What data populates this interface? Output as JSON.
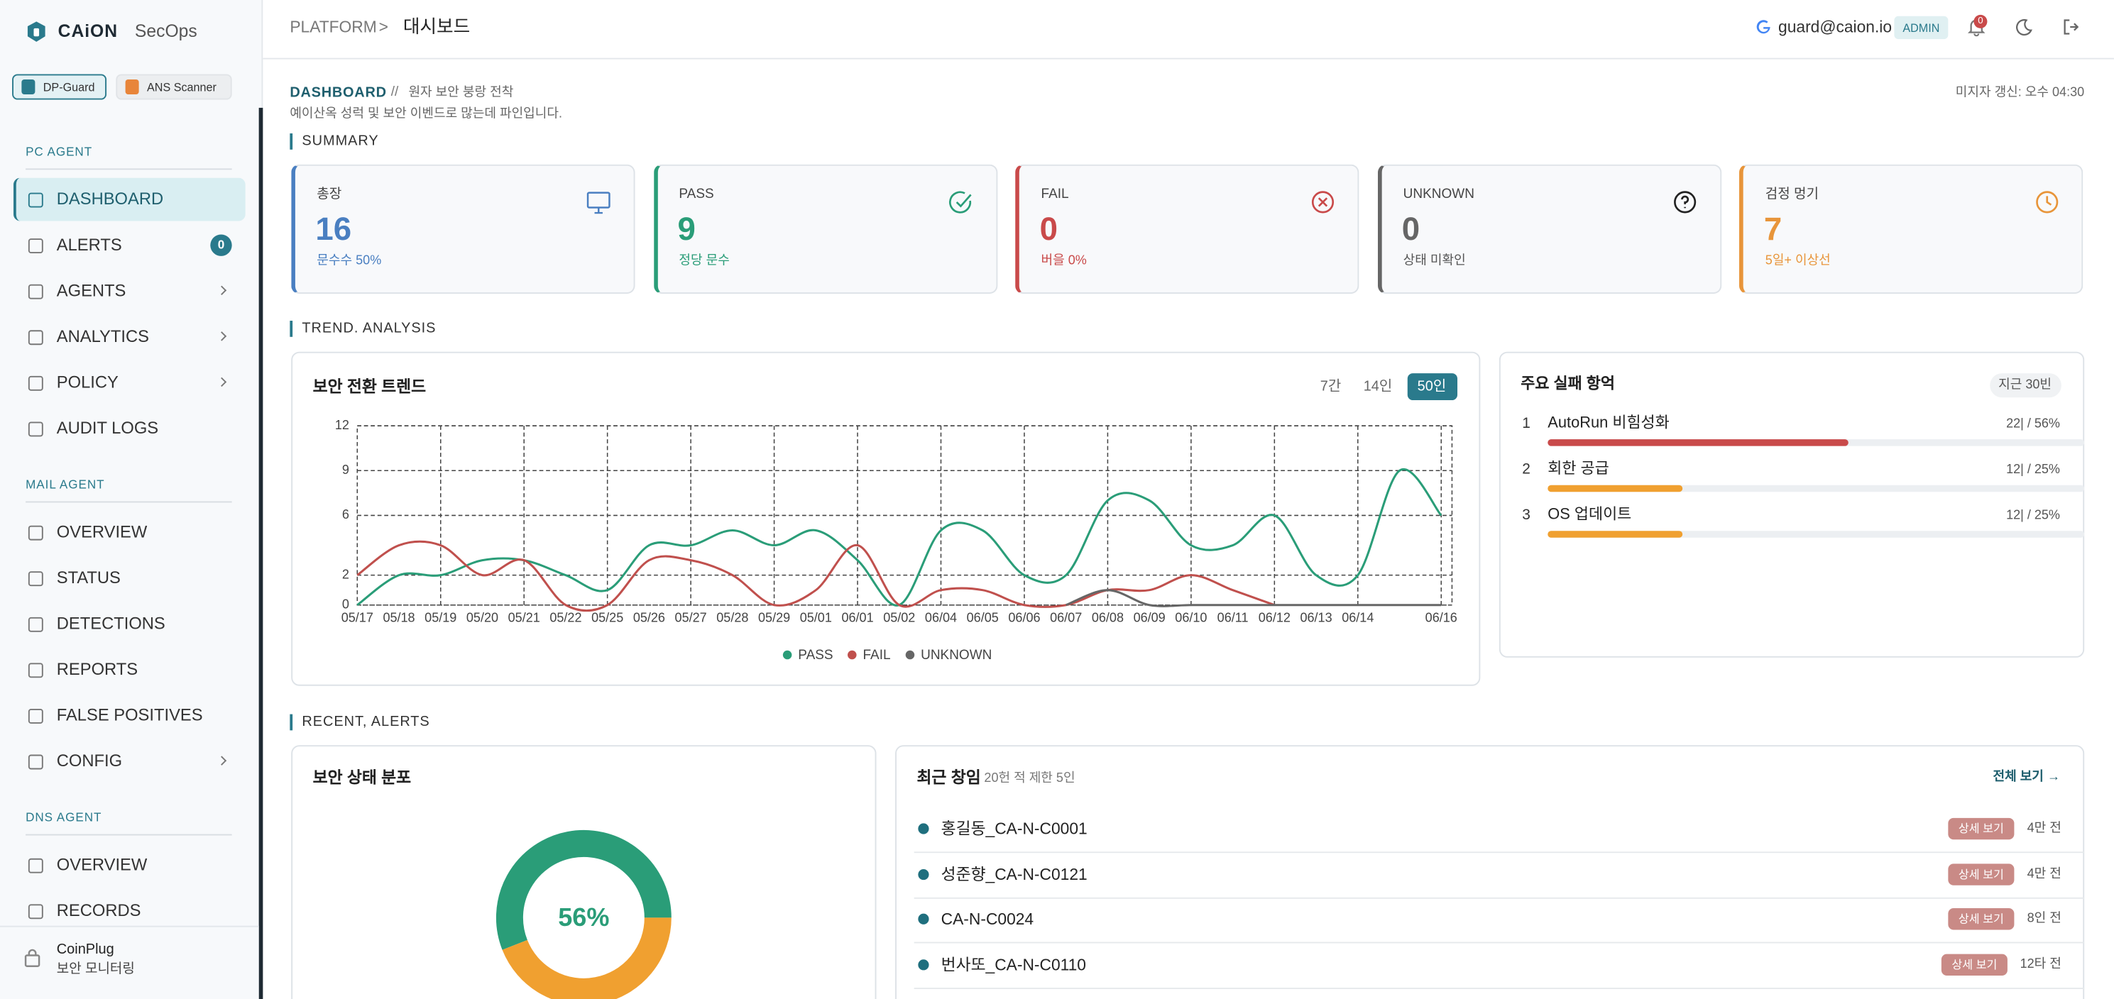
{
  "sidebar": {
    "brand": "CAiON",
    "product": "SecOps",
    "tabs": [
      "DP-Guard",
      "ANS Scanner"
    ],
    "active_tab": 0,
    "sections": [
      {
        "title": "PC AGENT",
        "items": [
          {
            "label": "DASHBOARD",
            "active": true
          },
          {
            "label": "ALERTS",
            "badge": 0
          },
          {
            "label": "AGENTS",
            "expandable": true
          },
          {
            "label": "ANALYTICS",
            "expandable": true
          },
          {
            "label": "POLICY",
            "expandable": true
          },
          {
            "label": "AUDIT LOGS"
          }
        ]
      },
      {
        "title": "MAIL AGENT",
        "items": [
          {
            "label": "OVERVIEW"
          },
          {
            "label": "STATUS"
          },
          {
            "label": "DETECTIONS"
          },
          {
            "label": "REPORTS"
          },
          {
            "label": "FALSE POSITIVES"
          },
          {
            "label": "CONFIG",
            "expandable": true
          }
        ]
      },
      {
        "title": "DNS AGENT",
        "items": [
          {
            "label": "OVERVIEW"
          },
          {
            "label": "RECORDS"
          }
        ]
      }
    ],
    "footer": {
      "org": "CoinPlug",
      "caption": "보안 모니터링"
    }
  },
  "header": {
    "breadcrumb": [
      "PLATFORM",
      "대시보드"
    ],
    "breadcrumb_separator": ">",
    "user": "guard@caion.io",
    "role": "ADMIN",
    "notifications": 0
  },
  "page": {
    "title": "DASHBOARD",
    "separator": "//",
    "subtitle": "원자 보안 붕랑 전착",
    "description": "예이산옥 성럭 및 보안 이벤드로 많는데 파인입니다.",
    "updated": "미지자 갱신: 오수 04:30"
  },
  "summary": {
    "heading": "SUMMARY",
    "cards": [
      {
        "label": "총장",
        "value": 16,
        "note": "문수수 50%",
        "color": "#4a7fc1"
      },
      {
        "label": "PASS",
        "value": 9,
        "note": "정당 문수",
        "color": "#2a9d78"
      },
      {
        "label": "FAIL",
        "value": 0,
        "note": "버을 0%",
        "color": "#c94a4a"
      },
      {
        "label": "UNKNOWN",
        "value": 0,
        "note": "상태 미확인",
        "color": "#666666"
      },
      {
        "label": "검정 멍기",
        "value": 7,
        "note": "5일+ 이상선",
        "color": "#e8953a"
      }
    ]
  },
  "trend": {
    "heading": "TREND. ANALYSIS",
    "ranges": [
      "7간",
      "14인",
      "50인"
    ],
    "active_range": 2
  },
  "chart_data": [
    {
      "type": "line",
      "title": "보안 전환 트렌드",
      "categories": [
        "05/17",
        "05/18",
        "05/19",
        "05/20",
        "05/21",
        "05/22",
        "05/25",
        "05/26",
        "05/27",
        "05/28",
        "05/29",
        "05/01",
        "06/01",
        "05/02",
        "06/04",
        "06/05",
        "06/06",
        "06/07",
        "06/08",
        "06/09",
        "06/10",
        "06/11",
        "06/12",
        "06/13",
        "06/14",
        null,
        "06/16"
      ],
      "series": [
        {
          "name": "PASS",
          "color": "#2a9d78",
          "values": [
            0,
            2,
            2,
            3,
            3,
            2,
            1,
            4,
            4,
            5,
            4,
            5,
            3,
            0,
            5,
            5,
            2,
            2,
            7,
            7,
            4,
            4,
            6,
            2,
            2,
            9,
            6
          ]
        },
        {
          "name": "FAIL",
          "color": "#c0504d",
          "values": [
            2,
            4,
            4,
            2,
            3,
            0,
            0,
            3,
            3,
            2,
            0,
            1,
            4,
            0,
            1,
            1,
            0,
            0,
            1,
            1,
            2,
            1,
            0,
            null,
            null,
            null,
            null
          ]
        },
        {
          "name": "UNKNOWN",
          "color": "#666666",
          "values": [
            null,
            null,
            null,
            null,
            null,
            null,
            null,
            null,
            null,
            null,
            null,
            null,
            null,
            null,
            null,
            null,
            null,
            0,
            1,
            0,
            0,
            0,
            0,
            0,
            0,
            0,
            0
          ]
        }
      ],
      "ylim": [
        0,
        12
      ],
      "yticks": [
        0,
        2,
        6,
        9,
        12
      ],
      "grid": true,
      "smooth": true,
      "legend": "bottom"
    },
    {
      "type": "pie",
      "title": "보안 상태 분포",
      "values": [
        56,
        44
      ],
      "colors": [
        "#2a9d78",
        "#f0a030"
      ],
      "donut": true,
      "center_label": {
        "value": 56,
        "label": "56%"
      }
    }
  ],
  "failures": {
    "title": "주요 실패 항억",
    "period": "지근 30빈",
    "items": [
      {
        "rank": "1",
        "name": "AutoRun 비힘성화",
        "value": 56,
        "label": "22| / 56%",
        "color": "#c94a4a"
      },
      {
        "rank": "2",
        "name": "회한 공급",
        "value": 25,
        "label": "12| / 25%",
        "color": "#f0a030"
      },
      {
        "rank": "3",
        "name": "OS 업데이트",
        "value": 25,
        "label": "12| / 25%",
        "color": "#f0a030"
      }
    ]
  },
  "recent": {
    "heading": "RECENT, ALERTS",
    "title": "최근 창임",
    "subtitle": "20헌 적 제한 5인",
    "link": "전체 보기 →",
    "rows": [
      {
        "name": "홍길동_CA-N-C0001",
        "action": "상세 보기",
        "time": "4만 전"
      },
      {
        "name": "성준향_CA-N-C0121",
        "action": "상세 보기",
        "time": "4만 전"
      },
      {
        "name": "CA-N-C0024",
        "action": "상세 보기",
        "time": "8인 전"
      },
      {
        "name": "번사또_CA-N-C0110",
        "action": "상세 보기",
        "time": "12타 전"
      }
    ]
  }
}
